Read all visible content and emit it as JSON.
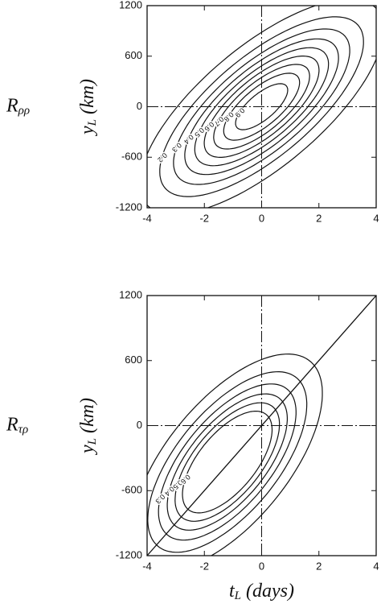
{
  "chart_data": [
    {
      "type": "contour",
      "panel_label": "R",
      "panel_subscript": "ρρ",
      "y_label": "y",
      "y_label_subscript": "L",
      "y_label_unit": "(km)",
      "xlim": [
        -4,
        4
      ],
      "ylim": [
        -1200,
        1200
      ],
      "xticks": [
        -4,
        -2,
        0,
        2,
        4
      ],
      "yticks": [
        -1200,
        -600,
        0,
        600,
        1200
      ],
      "levels": [
        0.1,
        0.2,
        0.3,
        0.4,
        0.5,
        0.6,
        0.7,
        0.8,
        0.9
      ],
      "zero_lines": true,
      "diagonal": false,
      "color": "#111111"
    },
    {
      "type": "contour",
      "panel_label": "R",
      "panel_subscript": "τρ",
      "y_label": "y",
      "y_label_subscript": "L",
      "y_label_unit": "(km)",
      "x_label": "t",
      "x_label_subscript": "L",
      "x_label_unit": "(days)",
      "xlim": [
        -4,
        4
      ],
      "ylim": [
        -1200,
        1200
      ],
      "xticks": [
        -4,
        -2,
        0,
        2,
        4
      ],
      "yticks": [
        -1200,
        -600,
        0,
        600,
        1200
      ],
      "levels": [
        0.1,
        0.2,
        0.3,
        0.4,
        0.5,
        0.6
      ],
      "zero_lines": true,
      "diagonal": true,
      "color": "#111111"
    }
  ]
}
